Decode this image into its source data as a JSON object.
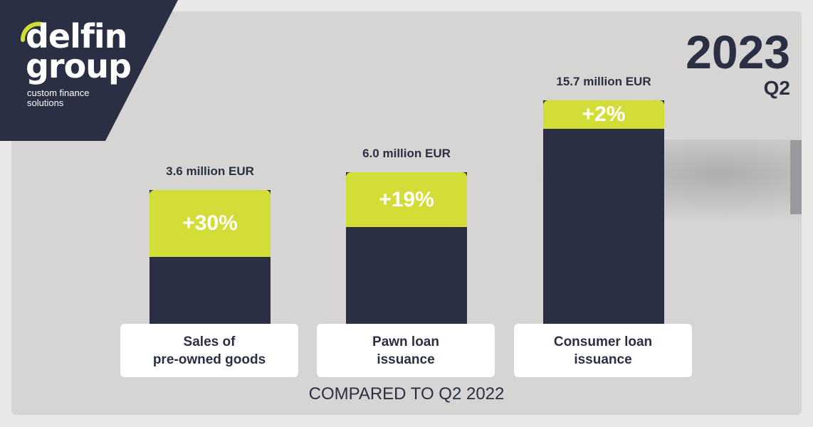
{
  "brand": {
    "line1": "delfin",
    "line2": "group",
    "tagline1": "custom finance",
    "tagline2": "solutions"
  },
  "period": {
    "year": "2023",
    "quarter": "Q2"
  },
  "footer": "COMPARED TO Q2 2022",
  "colors": {
    "dark": "#2b2f43",
    "accent": "#d3dd37",
    "background": "#d6d5d3"
  },
  "chart_data": {
    "type": "bar",
    "categories": [
      "Sales of pre-owned goods",
      "Pawn loan issuance",
      "Consumer loan issuance"
    ],
    "category_lines": [
      [
        "Sales of",
        "pre-owned goods"
      ],
      [
        "Pawn loan",
        "issuance"
      ],
      [
        "Consumer loan",
        "issuance"
      ]
    ],
    "values": [
      3.6,
      6.0,
      15.7
    ],
    "value_labels": [
      "3.6 million EUR",
      "6.0 million EUR",
      "15.7 million EUR"
    ],
    "growth": [
      30,
      19,
      2
    ],
    "growth_labels": [
      "+30%",
      "+19%",
      "+2%"
    ],
    "unit": "million EUR"
  }
}
